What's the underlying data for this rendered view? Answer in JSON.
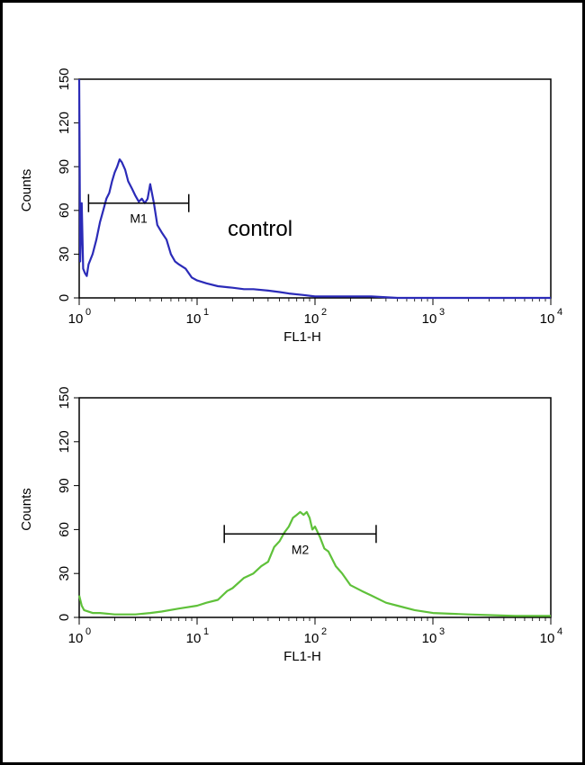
{
  "chart_data": [
    {
      "type": "line",
      "title": "",
      "xlabel": "FL1-H",
      "ylabel": "Counts",
      "xscale": "log",
      "xlim": [
        1,
        10000
      ],
      "ylim": [
        0,
        150
      ],
      "x_tick_labels": [
        {
          "base": "10",
          "exp": "0"
        },
        {
          "base": "10",
          "exp": "1"
        },
        {
          "base": "10",
          "exp": "2"
        },
        {
          "base": "10",
          "exp": "3"
        },
        {
          "base": "10",
          "exp": "4"
        }
      ],
      "y_ticks": [
        0,
        30,
        60,
        90,
        120,
        150
      ],
      "annotation": "control",
      "grid": false,
      "series": [
        {
          "color": "#2b2bb8",
          "x": [
            1.0,
            1.02,
            1.05,
            1.08,
            1.12,
            1.16,
            1.2,
            1.3,
            1.4,
            1.5,
            1.6,
            1.7,
            1.8,
            1.9,
            2.0,
            2.1,
            2.2,
            2.3,
            2.45,
            2.6,
            2.8,
            3.0,
            3.2,
            3.4,
            3.6,
            3.8,
            4.0,
            4.3,
            4.6,
            5.0,
            5.5,
            6.0,
            6.5,
            7.0,
            8.0,
            9.0,
            10.0,
            12.0,
            15.0,
            20.0,
            25.0,
            30.0,
            40.0,
            50.0,
            60.0,
            80.0,
            100.0,
            130.0,
            200.0,
            300.0,
            500.0,
            1000.0,
            3000.0,
            10000.0
          ],
          "y": [
            150,
            25,
            65,
            20,
            17,
            15,
            23,
            30,
            40,
            52,
            60,
            68,
            72,
            80,
            86,
            90,
            95,
            93,
            88,
            80,
            75,
            70,
            66,
            68,
            65,
            68,
            78,
            65,
            50,
            45,
            40,
            30,
            25,
            23,
            20,
            14,
            12,
            10,
            8,
            7,
            6,
            6,
            5,
            4,
            3,
            2,
            1,
            1,
            1,
            1,
            0,
            0,
            0,
            0
          ]
        }
      ],
      "markers": [
        {
          "name": "M1",
          "x_start": 1.2,
          "x_end": 8.5,
          "y": 65
        }
      ]
    },
    {
      "type": "line",
      "title": "",
      "xlabel": "FL1-H",
      "ylabel": "Counts",
      "xscale": "log",
      "xlim": [
        1,
        10000
      ],
      "ylim": [
        0,
        150
      ],
      "x_tick_labels": [
        {
          "base": "10",
          "exp": "0"
        },
        {
          "base": "10",
          "exp": "1"
        },
        {
          "base": "10",
          "exp": "2"
        },
        {
          "base": "10",
          "exp": "3"
        },
        {
          "base": "10",
          "exp": "4"
        }
      ],
      "y_ticks": [
        0,
        30,
        60,
        90,
        120,
        150
      ],
      "grid": false,
      "series": [
        {
          "color": "#5fc13a",
          "x": [
            1.0,
            1.05,
            1.1,
            1.3,
            1.5,
            2.0,
            3.0,
            4.0,
            5.0,
            7.0,
            10.0,
            12.0,
            15.0,
            18.0,
            20.0,
            25.0,
            30.0,
            35.0,
            40.0,
            45.0,
            50.0,
            55.0,
            60.0,
            65.0,
            70.0,
            75.0,
            80.0,
            85.0,
            90.0,
            95.0,
            100.0,
            110.0,
            120.0,
            130.0,
            150.0,
            170.0,
            200.0,
            250.0,
            300.0,
            400.0,
            500.0,
            700.0,
            1000.0,
            2000.0,
            5000.0,
            10000.0
          ],
          "y": [
            15,
            8,
            5,
            3,
            3,
            2,
            2,
            3,
            4,
            6,
            8,
            10,
            12,
            18,
            20,
            27,
            30,
            35,
            38,
            48,
            52,
            58,
            62,
            68,
            70,
            72,
            70,
            72,
            68,
            60,
            62,
            55,
            47,
            45,
            35,
            30,
            22,
            18,
            15,
            10,
            8,
            5,
            3,
            2,
            1,
            1
          ]
        }
      ],
      "markers": [
        {
          "name": "M2",
          "x_start": 17,
          "x_end": 330,
          "y": 57
        }
      ]
    }
  ]
}
